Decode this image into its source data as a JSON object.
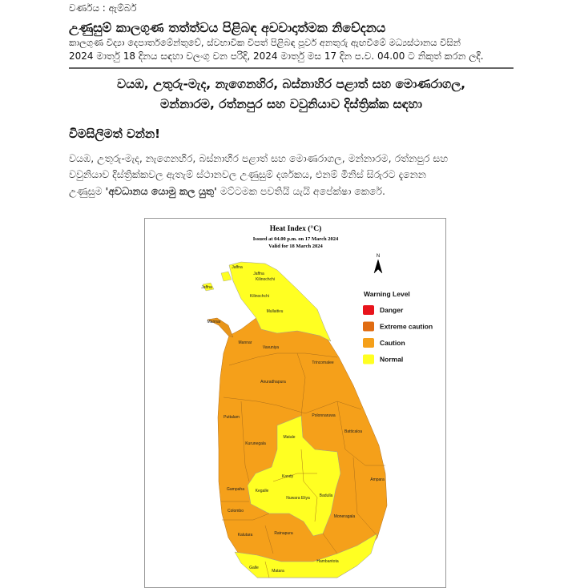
{
  "header": {
    "color_code": "වර්ණය : ඇම්බර්",
    "title": "උණුසුම් කාලගුණ තත්ත්වය පිළිබඳ අවවාදාත්මක නිවේදනය",
    "subtitle_line1": "කාලගුණ විද්‍යා දෙපාර්තමේන්තුවේ, ස්වභාවික විපත් පිළිබඳ  පූර්ව අනතුරු ඇඟවීමේ මධ්‍යස්ථානය විසින්",
    "subtitle_line2": "2024 මාර්තු 18 දිනය සඳහා වලංගු වන පරිදි, 2024 මාර්තු මස 17 දින ප.ව. 04.00 ට නිකුත් කරන ලදී."
  },
  "heading": {
    "line1": "වයඹ, උතුරු-මැද, නැගෙනහිර, බස්නාහිර පළාත් සහ මොණරාගල,",
    "line2": "මන්නාරම, රත්නපුර සහ වවුනියාව දිස්ත්‍රික්ක සඳහා"
  },
  "alert": "විමසිලිමත් වන්න!",
  "body": {
    "line1": "වයඹ, උතුරු-මැද, නැගෙනහිර, බස්නාහිර පළාත් සහ මොණරාගල, මන්නාරම, රත්නපුර සහ",
    "line2": "වවුනියාව දිස්ත්‍රික්කවල ඇතැම් ස්ථානවල උණුසුම් දර්ශකය, එනම් මිනිස් සිරුරට දැනෙන",
    "line3_pre": "උණුසුම ",
    "line3_bold": "'අවධානය යොමු කල යුතු'",
    "line3_post": " මට්ටමක පවතියි යැයි අපේක්ෂා කෙරේ."
  },
  "map": {
    "title": "Heat Index (°C)",
    "issued": "Issued at 04.00 p.m. on 17 March 2024",
    "valid": "Valid for 18 March 2024",
    "north": "N",
    "legend_title": "Warning Level",
    "legend": [
      {
        "label": "Danger",
        "color": "#e8141c"
      },
      {
        "label": "Extreme caution",
        "color": "#e06c12"
      },
      {
        "label": "Caution",
        "color": "#f5a01a"
      },
      {
        "label": "Normal",
        "color": "#ffff22"
      }
    ],
    "districts": [
      "Jaffna",
      "Jaffna",
      "Jaffna",
      "Kilinochchi",
      "Kilinochchi",
      "Mullaitivu",
      "Mannar",
      "Mannar",
      "Vavuniya",
      "Trincomalee",
      "Anuradhapura",
      "Puttalam",
      "Polonnaruwa",
      "Batticaloa",
      "Matale",
      "Kurunegala",
      "Kandy",
      "Kegalle",
      "Nuwara Eliya",
      "Badulla",
      "Ampara",
      "Gampaha",
      "Colombo",
      "Moneragala",
      "Kalutara",
      "Ratnapura",
      "Hambantota",
      "Galle",
      "Matara"
    ]
  }
}
